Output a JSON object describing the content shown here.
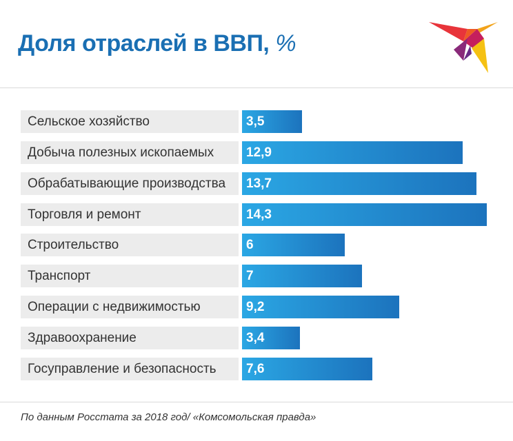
{
  "header": {
    "title": "Доля отраслей в ВВП,",
    "unit": "%"
  },
  "logo": {
    "icon": "swallow-bird-icon"
  },
  "chart_data": {
    "type": "bar",
    "orientation": "horizontal",
    "categories": [
      "Сельское хозяйство",
      "Добыча полезных ископаемых",
      "Обрабатывающие производства",
      "Торговля и ремонт",
      "Строительство",
      "Транспорт",
      "Операции с недвижимостью",
      "Здравоохранение",
      "Госуправление и безопасность"
    ],
    "values": [
      3.5,
      12.9,
      13.7,
      14.3,
      6,
      7,
      9.2,
      3.4,
      7.6
    ],
    "value_labels": [
      "3,5",
      "12,9",
      "13,7",
      "14,3",
      "6",
      "7",
      "9,2",
      "3,4",
      "7,6"
    ],
    "title": "Доля отраслей в ВВП, %",
    "xlim": [
      0,
      14.3
    ],
    "grid": false,
    "colors": {
      "bar_start": "#2ba7e4",
      "bar_end": "#1c73bd",
      "label_bg": "#ececec"
    }
  },
  "footer": {
    "source": "По данным Росстата за 2018 год/ «Комсомольская правда»"
  }
}
